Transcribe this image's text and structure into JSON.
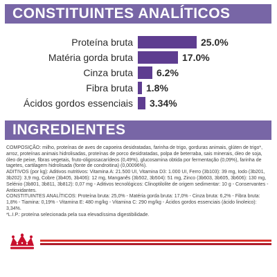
{
  "analytics": {
    "heading": "CONSTITUINTES ANALÍTICOS",
    "items": [
      {
        "label": "Proteína bruta",
        "value": "25.0%",
        "percent": 25.0
      },
      {
        "label": "Matéria gorda bruta",
        "value": "17.0%",
        "percent": 17.0
      },
      {
        "label": "Cinza bruta",
        "value": "6.2%",
        "percent": 6.2
      },
      {
        "label": "Fibra bruta",
        "value": "1.8%",
        "percent": 1.8
      },
      {
        "label": "Ácidos gordos essenciais",
        "value": "3.34%",
        "percent": 3.34
      }
    ]
  },
  "ingredients": {
    "heading": "INGREDIENTES",
    "composition": "COMPOSIÇÃO: milho, proteínas de aves de capoeira desidratadas, farinha de trigo, gorduras animais, glúten de trigo*, arroz, proteínas animais hidrolisadas, proteínas de porco desidratadas, polpa de beterraba, sais minerais, óleo de soja, óleo de peixe, fibras vegetais, fruto-oligossacarídeos (0,49%), glucosamina obtida por fermentação (0,09%), farinha de tagetes, cartilagem hidrolisada (fonte de condroitina) (0,00096%).",
    "additives": "ADITIVOS (por kg): Aditivos nutritivos: Vitamina A: 21.500 UI, Vitamina D3: 1.000 UI, Ferro (3b103): 39 mg, Iodo (3b201, 3b202): 3,9 mg, Cobre (3b405, 3b406): 12 mg, Manganês (3b502, 3b504): 51 mg, Zinco (3b603, 3b605, 3b606): 130 mg, Selénio (3b801, 3b811, 3b812): 0,07 mg - Aditivos tecnológicos: Clinoptilolite de origem sedimentar: 10 g - Conservantes - Antioxidantes.",
    "analytical": "CONSTITUINTES ANALÍTICOS: Proteína bruta: 25,0% - Matéria gorda bruta: 17,0% - Cinza bruta: 6,2% - Fibra bruta: 1,8% - Tiamina: 0,19% - Vitamina E: 480 mg/kg - Vitamina C: 290 mg/kg - Ácidos gordos essenciais (ácido linoleico): 3,34%.",
    "footnote": "*L.I.P.: proteína selecionada pela sua elevadíssima digestibilidade."
  },
  "colors": {
    "banner": "#7866a6",
    "bar": "#5e3d90",
    "stripe_top": "#d9322d",
    "stripe_bottom": "#b01d2a",
    "logo": "#c8102e"
  },
  "icons": [
    "royal-canin-crown-logo"
  ]
}
